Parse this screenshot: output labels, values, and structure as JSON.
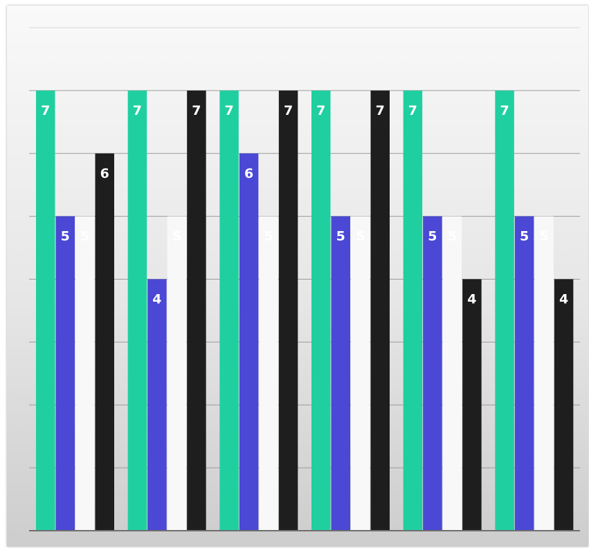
{
  "chart_data": {
    "type": "bar",
    "title": "",
    "xlabel": "",
    "ylabel": "",
    "categories": [
      "",
      "",
      "",
      "",
      "",
      ""
    ],
    "ylim": [
      0,
      8
    ],
    "grid": true,
    "legend": "none",
    "series": [
      {
        "color": "#20cfa0",
        "label_color": "#ffffff",
        "values": [
          7,
          7,
          7,
          7,
          7,
          7
        ]
      },
      {
        "color": "#4a48d4",
        "label_color": "#ffffff",
        "values": [
          5,
          4,
          6,
          5,
          5,
          5
        ]
      },
      {
        "color": "#f8f8f8",
        "label_color": "#ffffff",
        "values": [
          5,
          5,
          5,
          5,
          5,
          5
        ]
      },
      {
        "color": "#1e1e1e",
        "label_color": "#ffffff",
        "values": [
          6,
          7,
          7,
          7,
          4,
          4
        ]
      }
    ]
  }
}
